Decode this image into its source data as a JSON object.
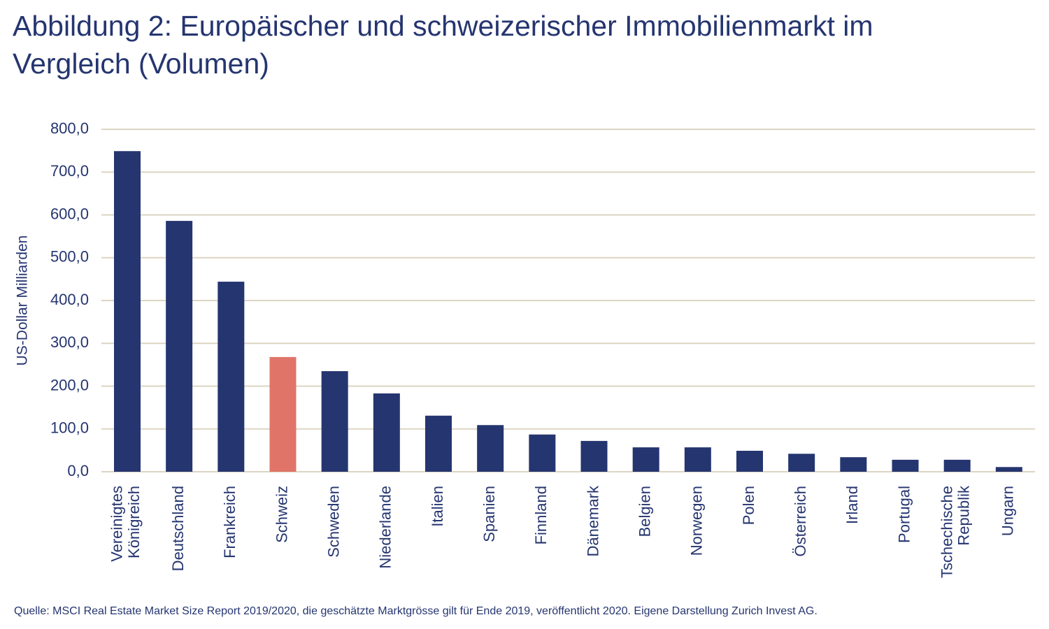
{
  "chart_data": {
    "type": "bar",
    "title": "Abbildung 2: Europäischer und schweizerischer Immobilienmarkt im Vergleich (Volumen)",
    "y_label": "US-Dollar Milliarden",
    "source": "Quelle: MSCI Real Estate Market Size Report 2019/2020, die geschätzte Marktgrösse gilt für Ende 2019, veröffentlicht 2020. Eigene Darstellung Zurich Invest AG.",
    "categories": [
      "Vereinigtes Königreich",
      "Deutschland",
      "Frankreich",
      "Schweiz",
      "Schweden",
      "Niederlande",
      "Italien",
      "Spanien",
      "Finnland",
      "Dänemark",
      "Belgien",
      "Norwegen",
      "Polen",
      "Österreich",
      "Irland",
      "Portugal",
      "Tschechische Republik",
      "Ungarn"
    ],
    "values": [
      749,
      586,
      444,
      268,
      235,
      183,
      131,
      109,
      87,
      72,
      57,
      57,
      49,
      42,
      34,
      28,
      28,
      11
    ],
    "colors": [
      "#253570",
      "#253570",
      "#253570",
      "#e07468",
      "#253570",
      "#253570",
      "#253570",
      "#253570",
      "#253570",
      "#253570",
      "#253570",
      "#253570",
      "#253570",
      "#253570",
      "#253570",
      "#253570",
      "#253570",
      "#253570"
    ],
    "ylim": [
      0,
      800
    ],
    "yticks": [
      {
        "value": 0,
        "label": "0,0"
      },
      {
        "value": 100,
        "label": "100,0"
      },
      {
        "value": 200,
        "label": "200,0"
      },
      {
        "value": 300,
        "label": "300,0"
      },
      {
        "value": 400,
        "label": "400,0"
      },
      {
        "value": 500,
        "label": "500,0"
      },
      {
        "value": 600,
        "label": "600,0"
      },
      {
        "value": 700,
        "label": "700,0"
      },
      {
        "value": 800,
        "label": "800,0"
      }
    ],
    "grid": true
  }
}
